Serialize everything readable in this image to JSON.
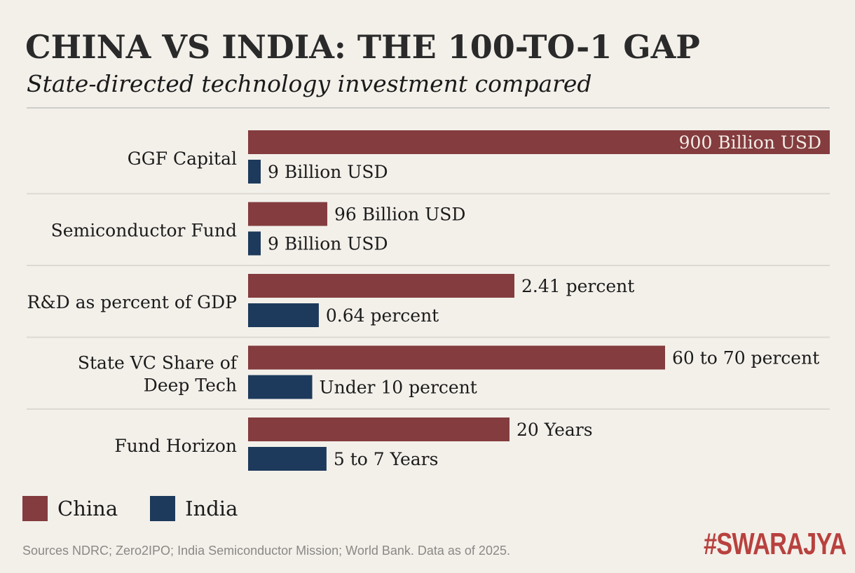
{
  "header": {
    "title": "CHINA VS INDIA: THE 100-TO-1 GAP",
    "subtitle": "State-directed technology investment compared"
  },
  "chart_data": {
    "type": "bar",
    "orientation": "horizontal",
    "grid": false,
    "legend_placement": "bottom-left",
    "categories": [
      "GGF Capital",
      "Semiconductor Fund",
      "R&D as percent of GDP",
      "State VC Share of Deep Tech",
      "Fund Horizon"
    ],
    "series": [
      {
        "name": "China",
        "color": "#843c3e",
        "values": [
          900,
          96,
          2.41,
          65,
          20
        ],
        "labels": [
          "900 Billion USD",
          "96 Billion USD",
          "2.41 percent",
          "60 to 70 percent",
          "20 Years"
        ]
      },
      {
        "name": "India",
        "color": "#1d3a5c",
        "values": [
          9,
          9,
          0.64,
          10,
          6
        ],
        "labels": [
          "9 Billion USD",
          "9 Billion USD",
          "0.64 percent",
          "Under 10 percent",
          "5 to 7 Years"
        ]
      }
    ]
  },
  "legend": [
    {
      "label": "China",
      "color": "#843c3e"
    },
    {
      "label": "India",
      "color": "#1d3a5c"
    }
  ],
  "footer": {
    "sources": "Sources NDRC; Zero2IPO; India Semiconductor Mission; World Bank. Data as of 2025.",
    "logo": "#SWARAJYA"
  }
}
